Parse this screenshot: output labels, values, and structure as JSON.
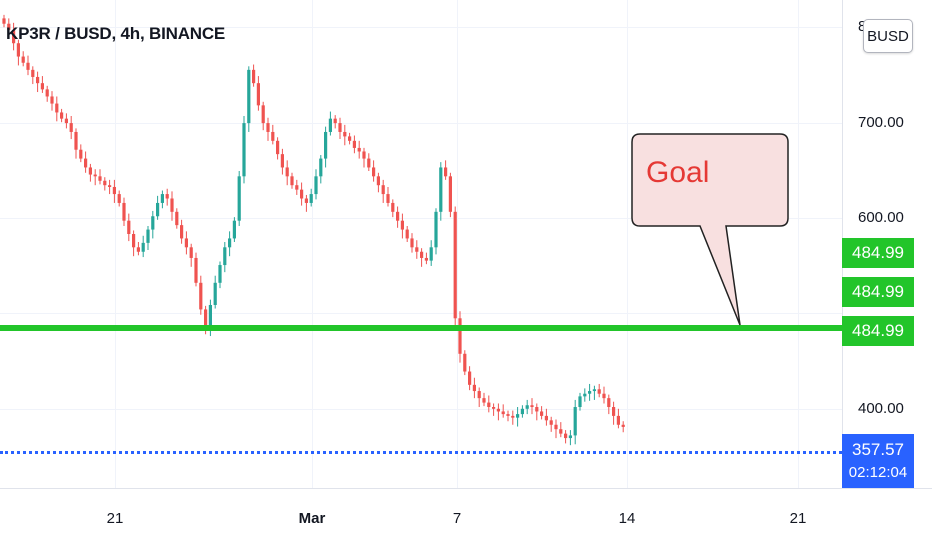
{
  "chart": {
    "title": "KP3R / BUSD, 4h, BINANCE",
    "currency_badge": "BUSD",
    "colors": {
      "up": "#26a69a",
      "down": "#ef5350",
      "goal_line": "#22c52a",
      "last_price": "#2962ff",
      "callout_fill": "#f8e0e0",
      "callout_text": "#e53935"
    }
  },
  "annotation": {
    "text": "Goal"
  },
  "price_axis": {
    "labels": [
      "800.00",
      "700.00",
      "600.00",
      "400.00"
    ],
    "partial_top_label": "8"
  },
  "price_tags": {
    "goal_1": "484.99",
    "goal_2": "484.99",
    "goal_3": "484.99",
    "last_price": "357.57",
    "countdown": "02:12:04"
  },
  "time_axis": {
    "ticks": [
      {
        "label": "21",
        "bold": false
      },
      {
        "label": "Mar",
        "bold": true
      },
      {
        "label": "7",
        "bold": false
      },
      {
        "label": "14",
        "bold": false
      },
      {
        "label": "21",
        "bold": false
      }
    ]
  },
  "chart_data": {
    "type": "candlestick",
    "series_close": [
      812,
      805,
      790,
      775,
      768,
      760,
      752,
      745,
      738,
      730,
      722,
      712,
      705,
      700,
      690,
      670,
      660,
      650,
      642,
      640,
      635,
      630,
      628,
      620,
      610,
      590,
      575,
      560,
      555,
      565,
      580,
      595,
      610,
      620,
      615,
      600,
      585,
      570,
      560,
      548,
      520,
      490,
      470,
      495,
      520,
      540,
      560,
      570,
      590,
      640,
      700,
      760,
      745,
      720,
      700,
      690,
      680,
      665,
      650,
      640,
      630,
      625,
      615,
      610,
      620,
      640,
      660,
      690,
      705,
      700,
      690,
      685,
      680,
      672,
      668,
      660,
      650,
      640,
      630,
      620,
      610,
      600,
      590,
      580,
      570,
      560,
      555,
      548,
      545,
      560,
      600,
      650,
      640,
      600,
      480,
      440,
      420,
      405,
      398,
      390,
      385,
      380,
      378,
      375,
      372,
      370,
      368,
      372,
      378,
      382,
      380,
      375,
      370,
      365,
      360,
      355,
      350,
      345,
      348,
      380,
      392,
      395,
      398,
      400,
      395,
      390,
      380,
      370,
      360,
      357.57
    ],
    "ylim": [
      300,
      850
    ],
    "date_ticks": [
      "21",
      "Mar",
      "7",
      "14",
      "21"
    ]
  }
}
